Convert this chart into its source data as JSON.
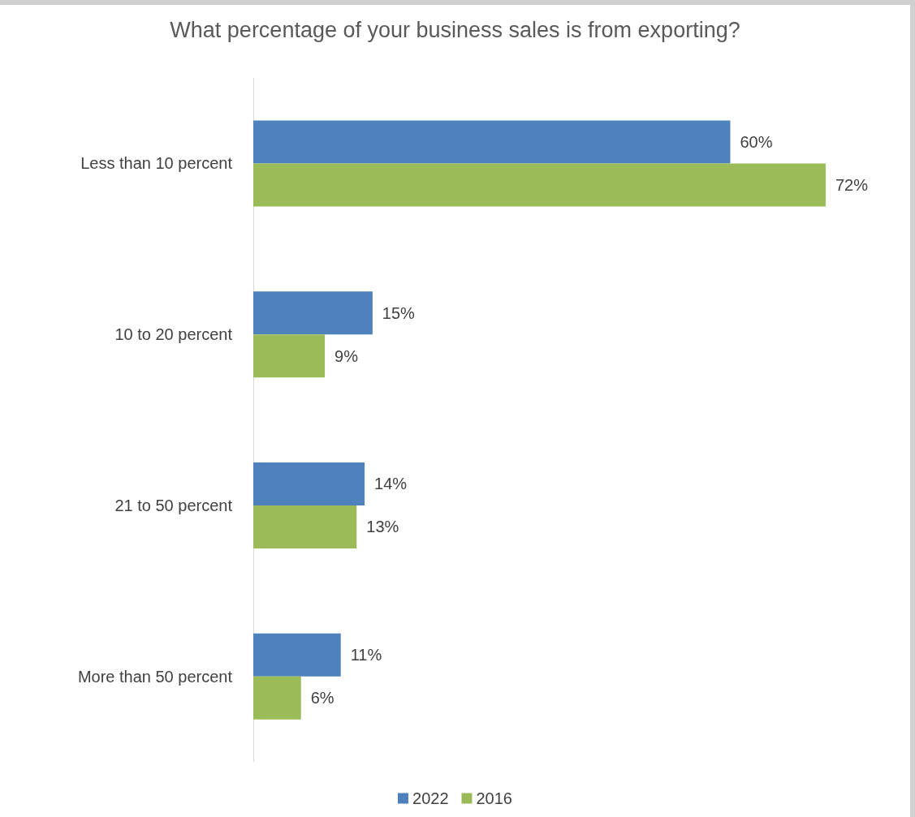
{
  "chart_data": {
    "type": "bar",
    "orientation": "horizontal",
    "title": "What percentage of your business sales is from exporting?",
    "categories": [
      "Less than 10 percent",
      "10 to 20 percent",
      "21 to 50 percent",
      "More than 50 percent"
    ],
    "series": [
      {
        "name": "2022",
        "color": "#4f81bd",
        "values": [
          60,
          15,
          14,
          11
        ],
        "value_labels": [
          "60%",
          "15%",
          "14%",
          "11%"
        ]
      },
      {
        "name": "2016",
        "color": "#9bbb59",
        "values": [
          72,
          9,
          13,
          6
        ],
        "value_labels": [
          "72%",
          "9%",
          "13%",
          "6%"
        ]
      }
    ],
    "tick_labels": "y",
    "grid": false,
    "legend": "bottom"
  }
}
